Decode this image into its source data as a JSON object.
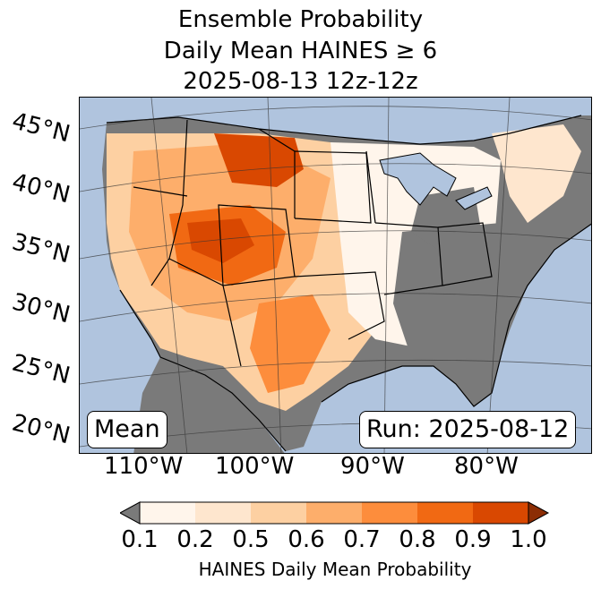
{
  "title": {
    "line1": "Ensemble Probability",
    "line2": "Daily Mean HAINES ≥ 6",
    "line3": "2025-08-13 12z-12z"
  },
  "map": {
    "latitude_labels": [
      "45°N",
      "40°N",
      "35°N",
      "30°N",
      "25°N",
      "20°N"
    ],
    "longitude_labels": [
      "110°W",
      "100°W",
      "90°W",
      "80°W"
    ],
    "stat_label": "Mean",
    "run_label": "Run: 2025-08-12",
    "colors": {
      "ocean": "#b0c4de",
      "below_threshold": "#7a7a7a",
      "lakes": "#b0c4de"
    }
  },
  "colorbar": {
    "label": "HAINES Daily Mean Probability",
    "ticks": [
      "0.1",
      "0.2",
      "0.5",
      "0.6",
      "0.7",
      "0.8",
      "0.9",
      "1.0"
    ],
    "colors": [
      "#fff5eb",
      "#fee6ce",
      "#fdd0a2",
      "#fdae6b",
      "#fd8d3c",
      "#f16913",
      "#d94801"
    ],
    "under_color": "#7a7a7a",
    "over_color": "#8c2d04"
  }
}
